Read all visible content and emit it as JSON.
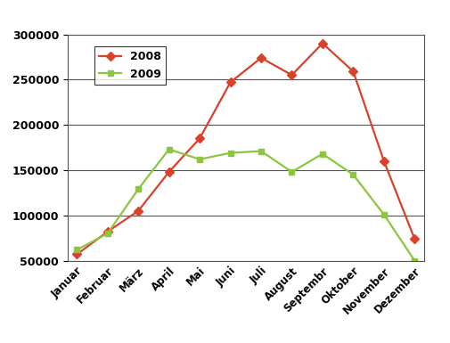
{
  "chart_data": {
    "type": "line",
    "categories": [
      "Januar",
      "Februar",
      "März",
      "April",
      "Mai",
      "Juni",
      "Juli",
      "August",
      "Septembr",
      "Oktober",
      "November",
      "Dezember"
    ],
    "series": [
      {
        "name": "2008",
        "color": "#d9412b",
        "marker": "diamond",
        "line_style": "solid",
        "values": [
          57000,
          82000,
          105000,
          148000,
          185000,
          247000,
          274000,
          255000,
          290000,
          259000,
          160000,
          74000
        ]
      },
      {
        "name": "2009",
        "color": "#8cc63f",
        "marker": "square",
        "line_style": "solid",
        "values": [
          62000,
          80000,
          129000,
          173000,
          162000,
          169000,
          171000,
          148000,
          168000,
          145000,
          101000,
          50000
        ]
      }
    ],
    "ylim": [
      50000,
      300000
    ],
    "yticks": [
      50000,
      100000,
      150000,
      200000,
      250000,
      300000
    ],
    "grid": true,
    "legend": "upper left"
  }
}
